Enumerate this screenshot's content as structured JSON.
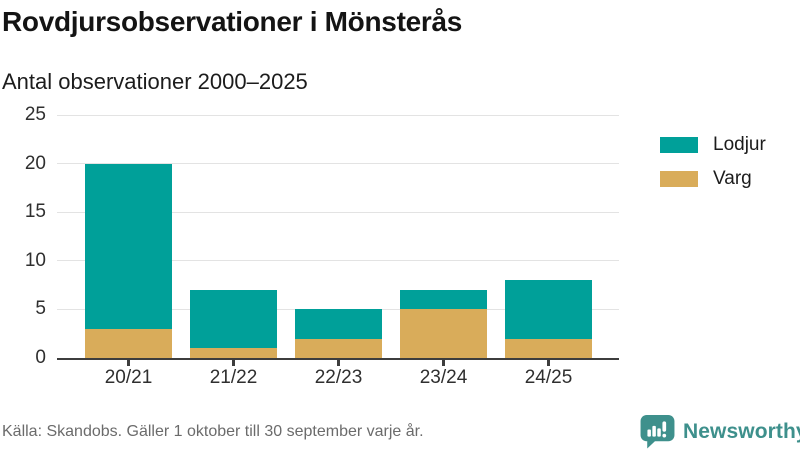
{
  "header": {},
  "chart_data": {
    "type": "bar",
    "stacked": true,
    "title": "Rovdjursobservationer i Mönsterås",
    "subtitle": "Antal observationer 2000–2025",
    "categories": [
      "20/21",
      "21/22",
      "22/23",
      "23/24",
      "24/25"
    ],
    "series": [
      {
        "name": "Lodjur",
        "color": "#00a099",
        "values": [
          17,
          6,
          3,
          2,
          6
        ]
      },
      {
        "name": "Varg",
        "color": "#d9ac5a",
        "values": [
          3,
          1,
          2,
          5,
          2
        ]
      }
    ],
    "stack_bottom_series": "Varg",
    "totals": [
      20,
      7,
      5,
      7,
      8
    ],
    "ylim": [
      0,
      25
    ],
    "yticks": [
      0,
      5,
      10,
      15,
      20,
      25
    ],
    "grid": true,
    "legend_position": "right"
  },
  "footer": {
    "source": "Källa: Skandobs. Gäller 1 oktober till 30 september varje år.",
    "brand": "Newsworthy"
  },
  "colors": {
    "lodjur": "#00a099",
    "varg": "#d9ac5a",
    "brand_teal": "#3e908c",
    "axis": "#3d3d3d",
    "grid": "#e3e3e3",
    "text": "#1c1c1c",
    "muted": "#6b6b6b"
  }
}
